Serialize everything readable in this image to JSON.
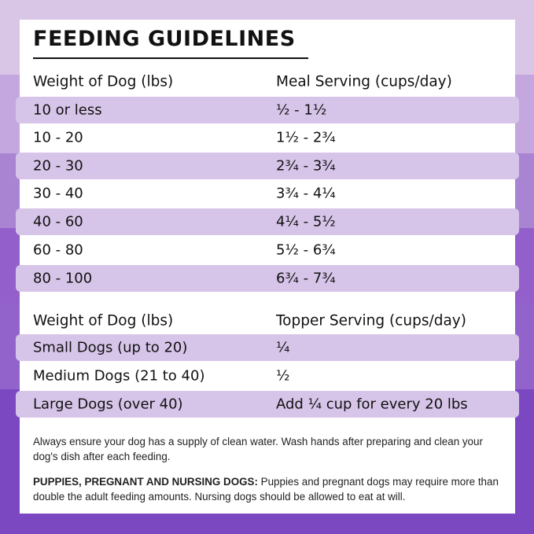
{
  "title": "FEEDING GUIDELINES",
  "meal_table": {
    "headers": [
      "Weight of Dog (lbs)",
      "Meal Serving (cups/day)"
    ],
    "rows": [
      [
        "10 or less",
        "½ - 1½"
      ],
      [
        "10 - 20",
        "1½ - 2¾"
      ],
      [
        "20 - 30",
        "2¾ - 3¾"
      ],
      [
        "30 - 40",
        "3¾ - 4¼"
      ],
      [
        "40 - 60",
        "4¼ - 5½"
      ],
      [
        "60 - 80",
        "5½ - 6¾"
      ],
      [
        "80 - 100",
        "6¾ - 7¾"
      ]
    ]
  },
  "topper_table": {
    "headers": [
      "Weight of Dog (lbs)",
      "Topper Serving (cups/day)"
    ],
    "rows": [
      [
        "Small Dogs (up to 20)",
        "¼"
      ],
      [
        "Medium Dogs (21 to 40)",
        "½"
      ],
      [
        "Large Dogs (over 40)",
        "Add ¼ cup for every 20 lbs"
      ]
    ]
  },
  "notes": {
    "water": "Always ensure your dog has a supply of clean water. Wash hands after preparing and clean your dog's dish after each feeding.",
    "puppies_label": "PUPPIES, PREGNANT AND NURSING DOGS:",
    "puppies_text": " Puppies and pregnant dogs may require more than double the adult feeding amounts. Nursing dogs should be allowed to eat at will."
  },
  "colors": {
    "stripe": "#d7c5e9",
    "background_light": "#d9c6e7",
    "background_dark": "#7b48c2"
  }
}
